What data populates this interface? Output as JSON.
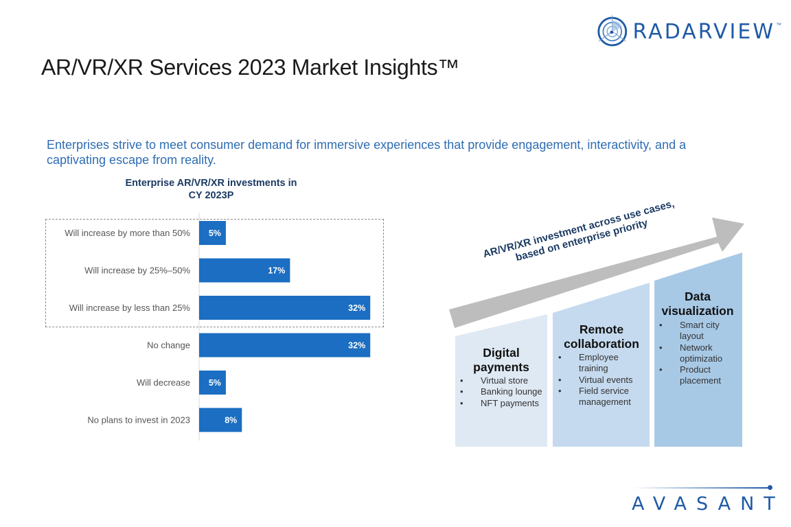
{
  "header": {
    "brand": "RADARVIEW",
    "brand_tm": "™",
    "title": "AR/VR/XR Services 2023 Market Insights™"
  },
  "subtitle": "Enterprises strive to meet consumer demand for immersive experiences that provide engagement, interactivity, and a captivating escape from reality.",
  "colors": {
    "bar": "#1b6ec2",
    "title_blue": "#2e6db3",
    "dark_navy": "#1b3a63",
    "arrow_gray": "#bdbdbd",
    "col1": "#dfe9f4",
    "col2": "#c5daee",
    "col3": "#a8c9e6",
    "brand_blue": "#1f5aa6"
  },
  "chart_data": {
    "type": "bar",
    "orientation": "horizontal",
    "title": "Enterprise AR/VR/XR investments in CY 2023P",
    "title_lines": [
      "Enterprise AR/VR/XR investments in",
      "CY 2023P"
    ],
    "categories": [
      "Will increase by more than 50%",
      "Will increase by 25%–50%",
      "Will increase by less than 25%",
      "No change",
      "Will decrease",
      "No plans to invest in 2023"
    ],
    "values": [
      5,
      17,
      32,
      32,
      5,
      8
    ],
    "value_labels": [
      "5%",
      "17%",
      "32%",
      "32%",
      "5%",
      "8%"
    ],
    "unit": "%",
    "xlim": [
      0,
      33
    ],
    "grid": false,
    "highlight_group": "Will increase (dashed box around first three categories)"
  },
  "infographic": {
    "arrow_label": "AR/VR/XR investment across use cases, based on enterprise priority",
    "columns": [
      {
        "title": "Digital payments",
        "items": [
          "Virtual store",
          "Banking lounge",
          "NFT payments"
        ]
      },
      {
        "title": "Remote collaboration",
        "items": [
          "Employee training",
          "Virtual events",
          "Field service management"
        ]
      },
      {
        "title": "Data visualization",
        "items": [
          "Smart city layout",
          "Network optimizatio",
          "Product placement"
        ]
      }
    ]
  },
  "footer": {
    "brand": "AVASANT"
  }
}
